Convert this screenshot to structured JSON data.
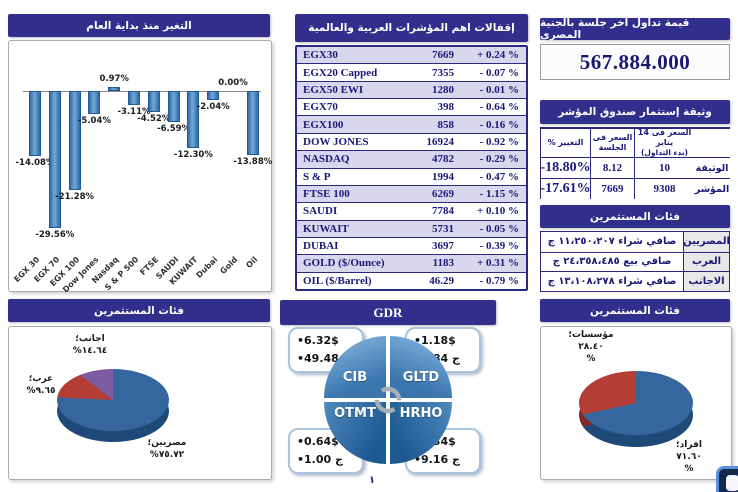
{
  "page": {
    "number": "١"
  },
  "trading_value": {
    "title": "قيمة تداول اخر جلسة بالجنية المصري",
    "value": "567.884.000"
  },
  "indices": {
    "title": "إقفالات اهم المؤشرات العربية والعالمية",
    "rows": [
      {
        "name": "EGX30",
        "close": "7669",
        "change": "+ 0.24 %"
      },
      {
        "name": "EGX20 Capped",
        "close": "7355",
        "change": "- 0.07 %"
      },
      {
        "name": "EGX50 EWI",
        "close": "1280",
        "change": "- 0.01 %"
      },
      {
        "name": "EGX70",
        "close": "398",
        "change": "- 0.64 %"
      },
      {
        "name": "EGX100",
        "close": "858",
        "change": "- 0.16 %"
      },
      {
        "name": "DOW JONES",
        "close": "16924",
        "change": "- 0.92 %"
      },
      {
        "name": "NASDAQ",
        "close": "4782",
        "change": "- 0.29 %"
      },
      {
        "name": "S & P",
        "close": "1994",
        "change": "- 0.47 %"
      },
      {
        "name": "FTSE 100",
        "close": "6269",
        "change": "- 1.15 %"
      },
      {
        "name": "SAUDI",
        "close": "7784",
        "change": "+ 0.10 %"
      },
      {
        "name": "KUWAIT",
        "close": "5731",
        "change": "- 0.05 %"
      },
      {
        "name": "DUBAI",
        "close": "3697",
        "change": "- 0.39 %"
      },
      {
        "name": "GOLD ($/Ounce)",
        "close": "1183",
        "change": "+ 0.31 %"
      },
      {
        "name": "OIL ($/Barrel)",
        "close": "46.29",
        "change": "- 0.79 %"
      }
    ]
  },
  "fund": {
    "title": "وثيقة إستثمار صندوق المؤشر",
    "headers": {
      "change": "التغيير %",
      "session": "السعر فى الجلسة",
      "start_l1": "السعر فى 14 يناير",
      "start_l2": "(بدء التداول)"
    },
    "rows": [
      {
        "label": "الوثيقة",
        "start": "10",
        "session": "8.12",
        "change": "-18.80%"
      },
      {
        "label": "المؤشر",
        "start": "9308",
        "session": "7669",
        "change": "-17.61%"
      }
    ]
  },
  "flows": {
    "title": "فئات المستثمرين",
    "rows": [
      {
        "label": "المصريين",
        "value": "صافي شراء ١١،٢٥٠،٢٠٧ ج"
      },
      {
        "label": "العرب",
        "value": "صافي بيع ٢٤،٣٥٨،٤٨٥ ج"
      },
      {
        "label": "الاجانب",
        "value": "صافي شراء ١٣،١٠٨،٢٧٨ ج"
      }
    ]
  },
  "gdr": {
    "title": "GDR",
    "companies": [
      {
        "code": "CIB",
        "usd": "•6.32$",
        "egp": "•49.48 ج"
      },
      {
        "code": "GLTD",
        "usd": "•1.18$",
        "egp": "•1.84 ج"
      },
      {
        "code": "OTMT",
        "usd": "•0.64$",
        "egp": "•1.00 ج"
      },
      {
        "code": "HRHO",
        "usd": "•2.34$",
        "egp": "•9.16 ج"
      }
    ]
  },
  "chart_data": [
    {
      "type": "bar",
      "title": "التغير منذ بداية العام",
      "categories": [
        "EGX 30",
        "EGX 70",
        "EGX 100",
        "Dow Jones",
        "Nasdaq",
        "S & P 500",
        "FTSE",
        "SAUDI",
        "KUWAIT",
        "Dubai",
        "Gold",
        "Oil"
      ],
      "values": [
        -14.08,
        -29.56,
        -21.28,
        -5.04,
        0.97,
        -3.11,
        -4.52,
        -6.59,
        -12.3,
        -2.04,
        0.0,
        -13.88
      ],
      "labels": [
        "-14.08%",
        "-29.56%",
        "-21.28%",
        "-5.04%",
        "0.97%",
        "-3.11%",
        "-4.52%",
        "-6.59%",
        "-12.30%",
        "-2.04%",
        "0.00%",
        "-13.88%"
      ],
      "ylim": [
        -32,
        4
      ],
      "bar_color": "#4f86bd",
      "grid": false
    },
    {
      "type": "pie",
      "title": "فئات المستثمرين",
      "labels": [
        "مصريين؛",
        "عرب؛",
        "اجانب؛"
      ],
      "values": [
        75.72,
        9.65,
        14.64
      ],
      "display": [
        "٧٥.٧٢%",
        "٩.٦٥%",
        "١٤.٦٤%"
      ],
      "colors": [
        "#36669e",
        "#b43d36",
        "#7c5ba1"
      ],
      "side_colors": [
        "#1e4a77",
        "#7e2a26",
        "#55406f"
      ]
    },
    {
      "type": "pie",
      "title": "فئات المستثمرين",
      "labels": [
        "افراد؛",
        "مؤسسات؛"
      ],
      "values": [
        71.6,
        28.4
      ],
      "display": [
        "٧١.٦٠",
        "٢٨.٤٠"
      ],
      "percent_symbol": "%",
      "colors": [
        "#36669e",
        "#b43d36"
      ],
      "side_colors": [
        "#1e4a77",
        "#7e2a26"
      ]
    }
  ]
}
